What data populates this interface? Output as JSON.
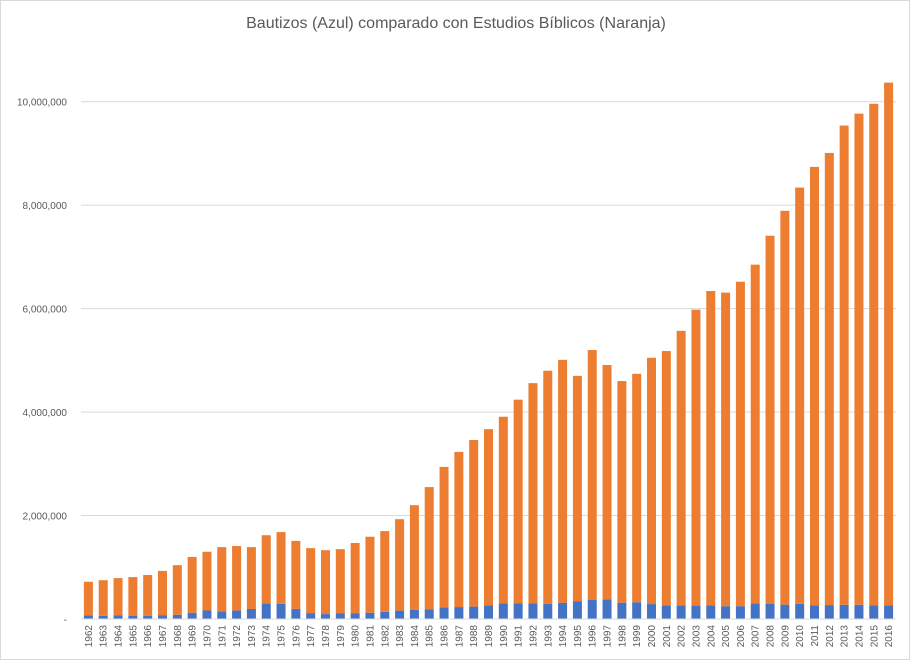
{
  "chart_data": {
    "type": "bar",
    "stacked": true,
    "title": "Bautizos (Azul) comparado con Estudios Bíblicos (Naranja)",
    "xlabel": "",
    "ylabel": "",
    "ylim": [
      0,
      11000000
    ],
    "yticks": [
      0,
      2000000,
      4000000,
      6000000,
      8000000,
      10000000
    ],
    "ytick_labels": [
      "-",
      "2,000,000",
      "4,000,000",
      "6,000,000",
      "8,000,000",
      "10,000,000"
    ],
    "grid": true,
    "legend": "none",
    "categories": [
      "1962",
      "1963",
      "1964",
      "1965",
      "1966",
      "1967",
      "1968",
      "1969",
      "1970",
      "1971",
      "1972",
      "1973",
      "1974",
      "1975",
      "1976",
      "1977",
      "1978",
      "1979",
      "1980",
      "1981",
      "1982",
      "1983",
      "1984",
      "1985",
      "1986",
      "1987",
      "1988",
      "1989",
      "1990",
      "1991",
      "1992",
      "1993",
      "1994",
      "1995",
      "1996",
      "1997",
      "1998",
      "1999",
      "2000",
      "2001",
      "2002",
      "2003",
      "2004",
      "2005",
      "2006",
      "2007",
      "2008",
      "2009",
      "2010",
      "2011",
      "2012",
      "2013",
      "2014",
      "2015",
      "2016"
    ],
    "series": [
      {
        "name": "Bautizos",
        "color": "#4472c4",
        "values": [
          69649,
          62798,
          68236,
          64393,
          58904,
          74762,
          82842,
          120905,
          164193,
          149808,
          163123,
          193990,
          297872,
          295073,
          196656,
          113672,
          95052,
          113351,
          113672,
          121972,
          138540,
          161896,
          179421,
          189800,
          225868,
          230843,
          239268,
          263855,
          301922,
          300945,
          301002,
          296004,
          314818,
          338491,
          366579,
          375923,
          316092,
          323439,
          288907,
          263431,
          265469,
          258845,
          262416,
          247631,
          248327,
          298304,
          289678,
          277344,
          294368,
          263131,
          268777,
          275581,
          275581,
          260273,
          264535
        ]
      },
      {
        "name": "Estudios Bíblicos",
        "color": "#ed7d31",
        "values": [
          650000,
          687000,
          722000,
          746000,
          791000,
          855000,
          957000,
          1079000,
          1136000,
          1240000,
          1247000,
          1196000,
          1322000,
          1385000,
          1313000,
          1256000,
          1235000,
          1237000,
          1356000,
          1468000,
          1561000,
          1768000,
          2021000,
          2360000,
          2714000,
          2999000,
          3221000,
          3406000,
          3608000,
          3939000,
          4259000,
          4504000,
          4695000,
          4362000,
          4833000,
          4534000,
          4284000,
          4417000,
          4761000,
          4917000,
          5305000,
          5721000,
          6078000,
          6062000,
          6272000,
          6552000,
          7120000,
          7613000,
          8046000,
          8477000,
          8741000,
          9264000,
          9494000,
          9700000,
          10105000
        ]
      }
    ]
  }
}
